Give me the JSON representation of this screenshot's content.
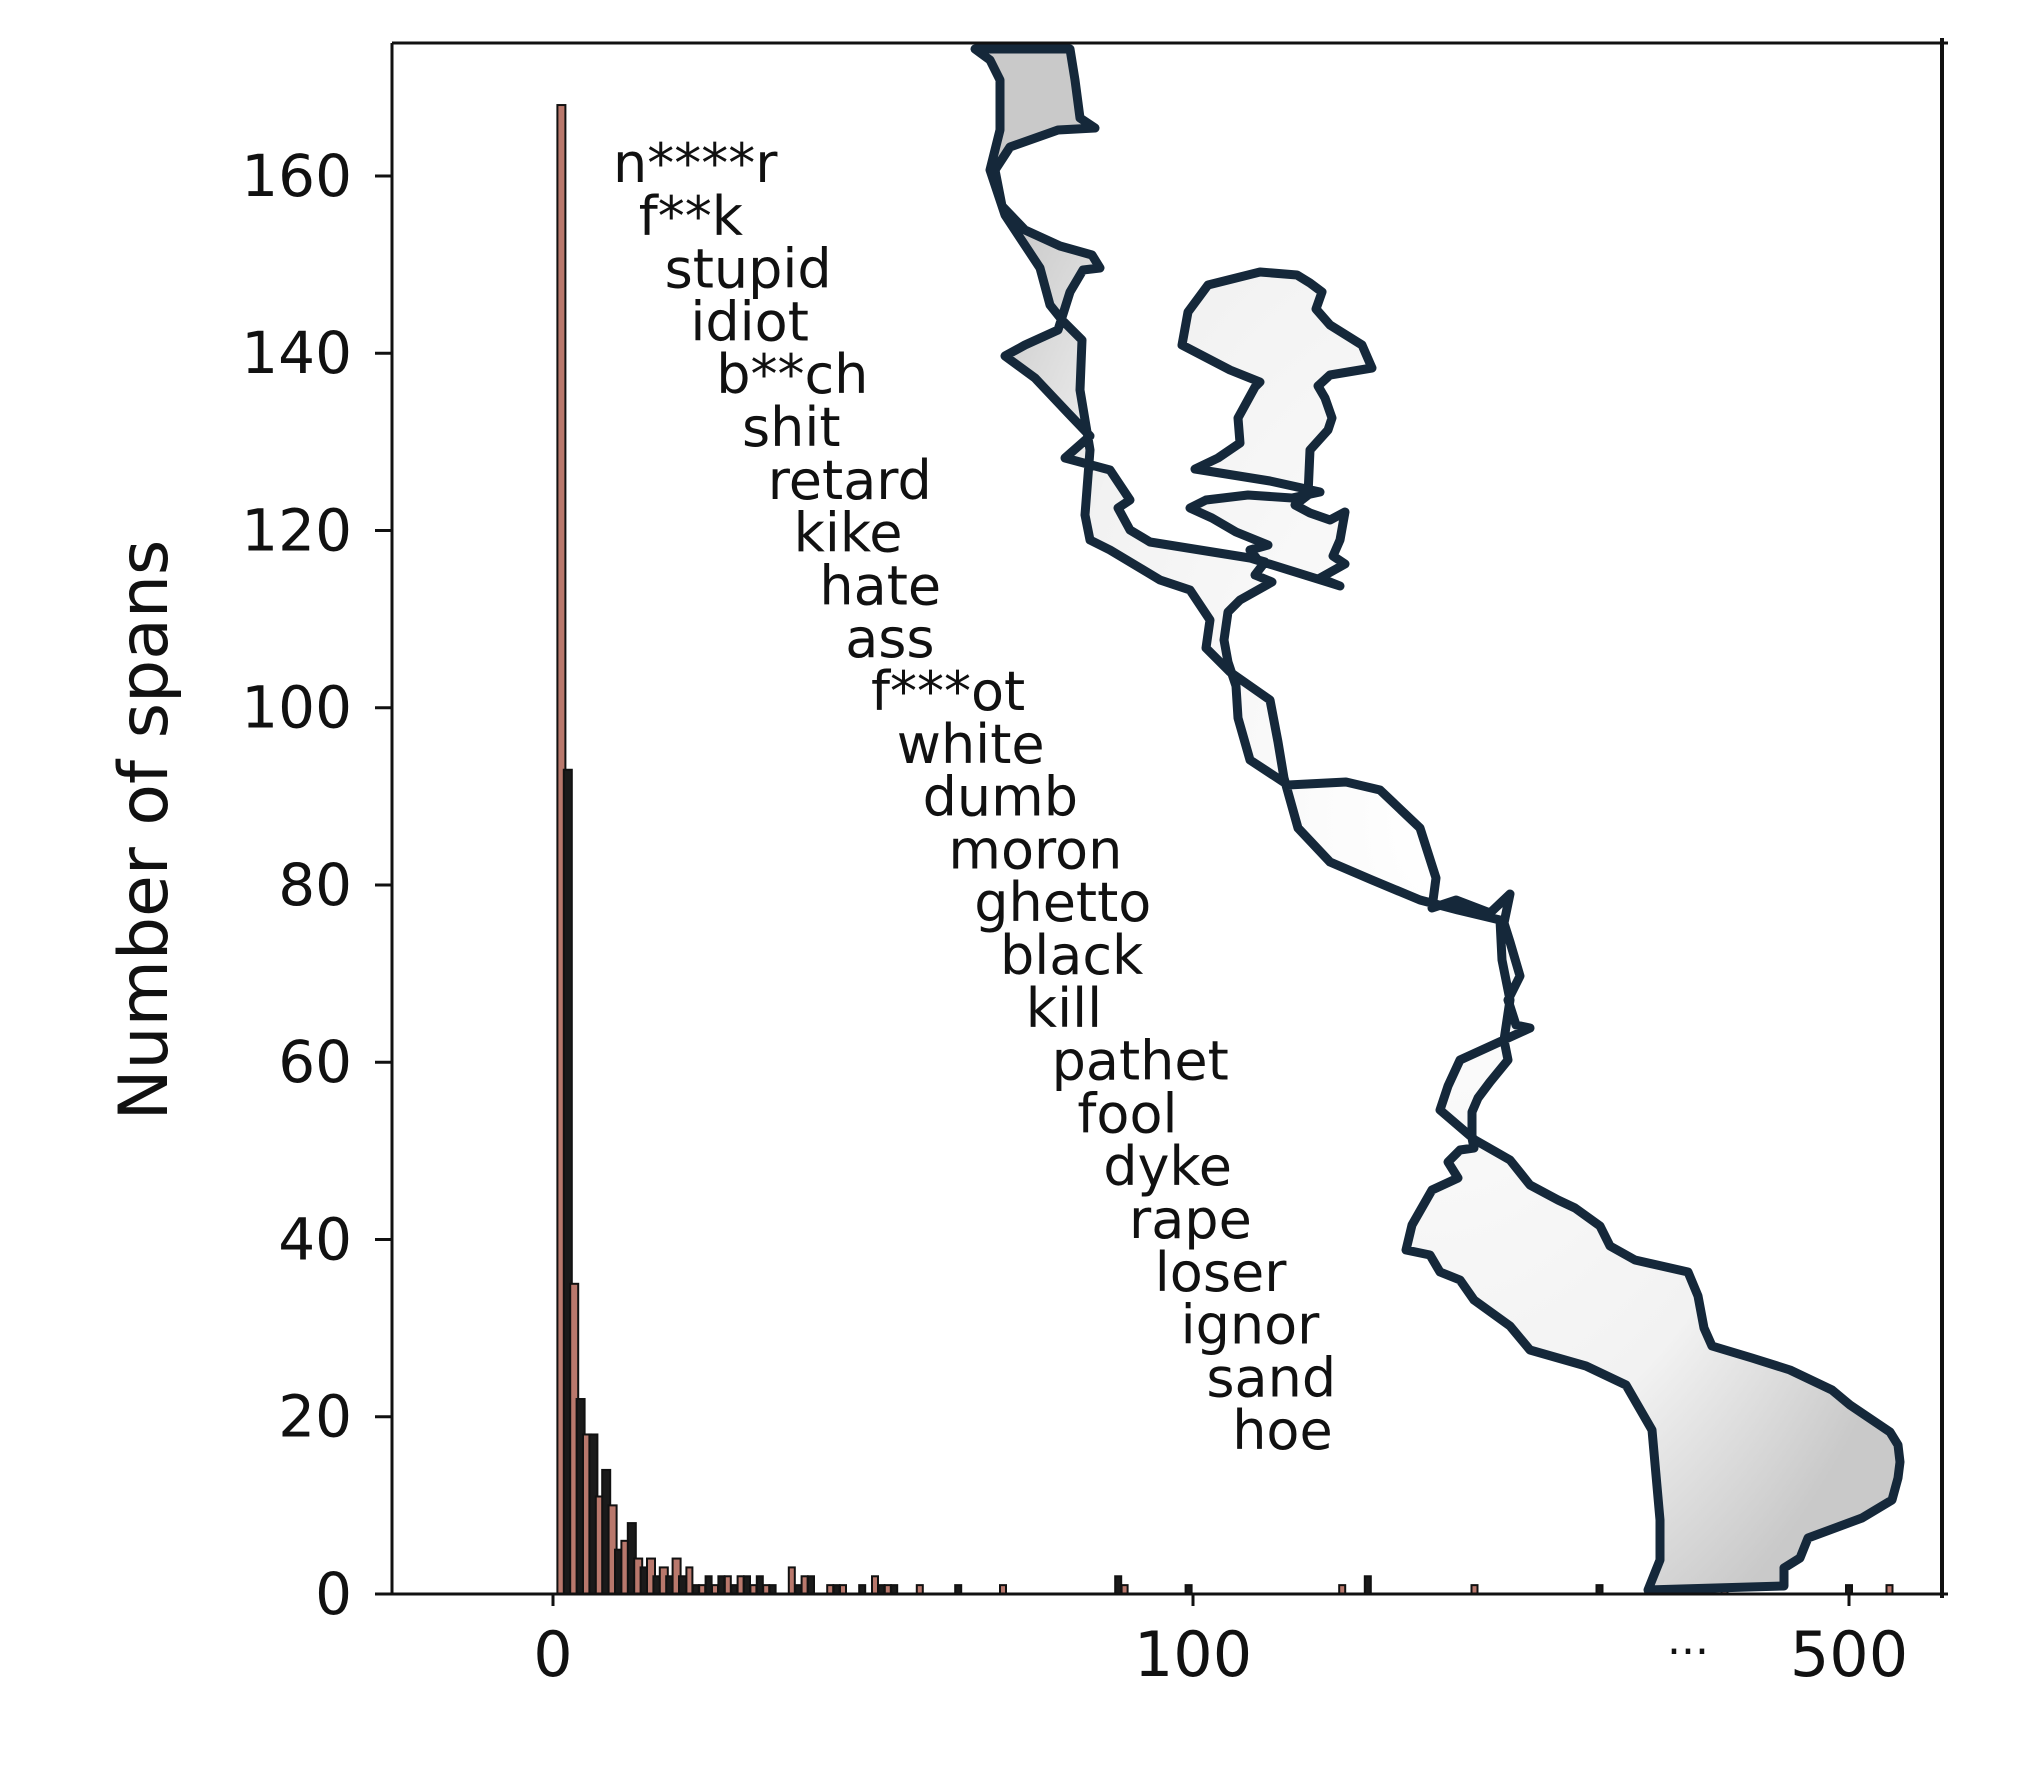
{
  "chart_data": {
    "type": "bar",
    "title": "",
    "ylabel": "Number of spans",
    "xlabel": "",
    "ylim": [
      0,
      175
    ],
    "x_ticks": [
      "0",
      "100",
      "500"
    ],
    "x_break_marker": "...",
    "y_ticks": [
      "0",
      "20",
      "40",
      "60",
      "80",
      "100",
      "120",
      "140",
      "160"
    ],
    "grid": false,
    "series": [
      {
        "bars": [
          {
            "x": 1,
            "value": 168
          },
          {
            "x": 2,
            "value": 93
          },
          {
            "x": 3,
            "value": 35
          },
          {
            "x": 4,
            "value": 22
          },
          {
            "x": 5,
            "value": 18
          },
          {
            "x": 6,
            "value": 18
          },
          {
            "x": 7,
            "value": 11
          },
          {
            "x": 8,
            "value": 14
          },
          {
            "x": 9,
            "value": 10
          },
          {
            "x": 10,
            "value": 5
          },
          {
            "x": 11,
            "value": 6
          },
          {
            "x": 12,
            "value": 8
          },
          {
            "x": 13,
            "value": 4
          },
          {
            "x": 14,
            "value": 3
          },
          {
            "x": 15,
            "value": 4
          },
          {
            "x": 16,
            "value": 2
          },
          {
            "x": 17,
            "value": 3
          },
          {
            "x": 18,
            "value": 2
          },
          {
            "x": 19,
            "value": 4
          },
          {
            "x": 20,
            "value": 2
          },
          {
            "x": 21,
            "value": 3
          },
          {
            "x": 22,
            "value": 1
          },
          {
            "x": 23,
            "value": 1
          },
          {
            "x": 24,
            "value": 2
          },
          {
            "x": 25,
            "value": 1
          },
          {
            "x": 26,
            "value": 2
          },
          {
            "x": 27,
            "value": 2
          },
          {
            "x": 28,
            "value": 1
          },
          {
            "x": 29,
            "value": 2
          },
          {
            "x": 30,
            "value": 2
          },
          {
            "x": 31,
            "value": 1
          },
          {
            "x": 32,
            "value": 2
          },
          {
            "x": 33,
            "value": 1
          },
          {
            "x": 34,
            "value": 1
          },
          {
            "x": 37,
            "value": 3
          },
          {
            "x": 38,
            "value": 1
          },
          {
            "x": 39,
            "value": 2
          },
          {
            "x": 40,
            "value": 2
          },
          {
            "x": 43,
            "value": 1
          },
          {
            "x": 44,
            "value": 1
          },
          {
            "x": 45,
            "value": 1
          },
          {
            "x": 48,
            "value": 1
          },
          {
            "x": 50,
            "value": 2
          },
          {
            "x": 51,
            "value": 1
          },
          {
            "x": 52,
            "value": 1
          },
          {
            "x": 53,
            "value": 1
          },
          {
            "x": 57,
            "value": 1
          },
          {
            "x": 63,
            "value": 1
          },
          {
            "x": 70,
            "value": 1
          },
          {
            "x": 88,
            "value": 2
          },
          {
            "x": 89,
            "value": 1
          },
          {
            "x": 99,
            "value": 1
          },
          {
            "x": 123,
            "value": 1
          },
          {
            "x": 127,
            "value": 2
          },
          {
            "x": 200,
            "value": 1
          },
          {
            "x": 300,
            "value": 1
          },
          {
            "x": 400,
            "value": 1
          },
          {
            "x": 500,
            "value": 1
          },
          {
            "x": 545,
            "value": 1
          }
        ]
      }
    ],
    "annotations": [
      "n****r",
      "f**k",
      "stupid",
      "idiot",
      "b**ch",
      "shit",
      "retard",
      "kike",
      "hate",
      "ass",
      "f***ot",
      "white",
      "dumb",
      "moron",
      "ghetto",
      "black",
      "kill",
      "pathet",
      "fool",
      "dyke",
      "rape",
      "loser",
      "ignor",
      "sand",
      "hoe"
    ]
  }
}
